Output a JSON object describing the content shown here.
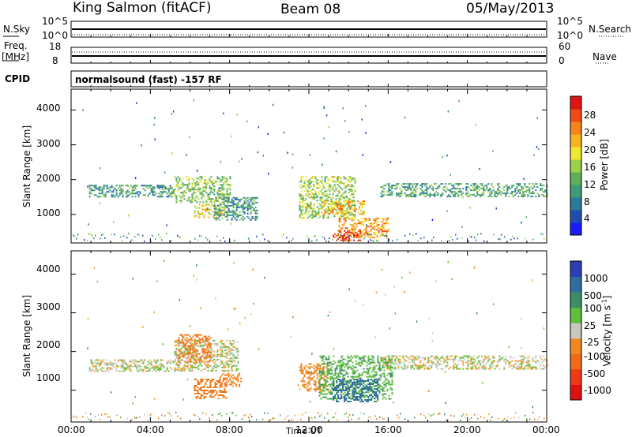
{
  "header": {
    "station": "King Salmon (fitACF)",
    "beam": "Beam 08",
    "date": "05/May/2013"
  },
  "top_panels": {
    "nsky_label": "N.Sky",
    "nsky_ticks": [
      "10^5",
      "10^0"
    ],
    "nsearch_label": "N.Search",
    "nsearch_ticks": [
      "10^5",
      "10^0"
    ],
    "freq_label_1": "Freq.",
    "freq_label_2": "[MHz]",
    "freq_ticks": [
      "18",
      "8"
    ],
    "nave_label": "Nave",
    "nave_ticks": [
      "60",
      "0"
    ],
    "cpid_label": "CPID",
    "cpid_text": "normalsound (fast) -157 RF"
  },
  "colorbars": {
    "power": {
      "label": "Power [dB]",
      "ticks": [
        "28",
        "24",
        "20",
        "16",
        "12",
        "8",
        "4"
      ],
      "colors": [
        "#1a1aff",
        "#1e4fb0",
        "#2b7a9a",
        "#3c9b78",
        "#5fae59",
        "#9bd24a",
        "#f0e82e",
        "#f6b41e",
        "#f5841a",
        "#f04a14",
        "#e01414"
      ]
    },
    "velocity": {
      "label": "Velocity [m s",
      "label_sup": "-1",
      "label_close": "]",
      "ticks": [
        "1000",
        "500",
        "100",
        "25",
        "-25",
        "-100",
        "-500",
        "-1000"
      ],
      "colors": [
        "#2c3fb4",
        "#2f6ea0",
        "#3a8f65",
        "#5fbf3a",
        "#c8c8c0",
        "#f08a20",
        "#f06a18",
        "#ee3a14",
        "#e01010"
      ]
    }
  },
  "axes": {
    "x_ticks": [
      "00:00",
      "04:00",
      "08:00",
      "12:00",
      "16:00",
      "20:00",
      "00:00"
    ],
    "x_label": "Time UT",
    "y_ticks": [
      "4000",
      "3000",
      "2000",
      "1000"
    ],
    "y_label": "Slant Range [km]"
  },
  "chart_data": [
    {
      "type": "heatmap",
      "title": "Power [dB]",
      "xlabel": "Time UT",
      "ylabel": "Slant Range [km]",
      "xlim": [
        0,
        24
      ],
      "ylim": [
        180,
        4600
      ],
      "yticks": [
        1000,
        2000,
        3000,
        4000
      ],
      "color_scale": [
        4,
        8,
        12,
        16,
        20,
        24,
        28
      ],
      "regions": [
        {
          "t": [
            0.9,
            5.2
          ],
          "r": [
            1500,
            1850
          ],
          "level": 0.3
        },
        {
          "t": [
            5.2,
            8.0
          ],
          "r": [
            1350,
            2100
          ],
          "level": 0.45
        },
        {
          "t": [
            6.2,
            7.8
          ],
          "r": [
            900,
            1300
          ],
          "level": 0.6
        },
        {
          "t": [
            7.2,
            9.4
          ],
          "r": [
            850,
            1500
          ],
          "level": 0.3
        },
        {
          "t": [
            11.5,
            14.3
          ],
          "r": [
            900,
            2100
          ],
          "level": 0.5
        },
        {
          "t": [
            12.6,
            14.8
          ],
          "r": [
            1000,
            1400
          ],
          "level": 0.7
        },
        {
          "t": [
            13.5,
            16.0
          ],
          "r": [
            350,
            900
          ],
          "level": 0.75
        },
        {
          "t": [
            13.2,
            14.6
          ],
          "r": [
            250,
            550
          ],
          "level": 0.95
        },
        {
          "t": [
            15.6,
            24.0
          ],
          "r": [
            1500,
            1900
          ],
          "level": 0.35
        }
      ]
    },
    {
      "type": "heatmap",
      "title": "Velocity [m s-1]",
      "xlabel": "Time UT",
      "ylabel": "Slant Range [km]",
      "xlim": [
        0,
        24
      ],
      "ylim": [
        180,
        4600
      ],
      "yticks": [
        1000,
        2000,
        3000,
        4000
      ],
      "color_scale": [
        1000,
        500,
        100,
        25,
        -25,
        -100,
        -500,
        -1000
      ],
      "regions": [
        {
          "t": [
            0.9,
            5.5
          ],
          "r": [
            1500,
            1800
          ],
          "vel": 0
        },
        {
          "t": [
            5.2,
            8.4
          ],
          "r": [
            1500,
            2300
          ],
          "vel": 0
        },
        {
          "t": [
            5.4,
            7.0
          ],
          "r": [
            1750,
            2450
          ],
          "vel": -150
        },
        {
          "t": [
            6.2,
            7.8
          ],
          "r": [
            800,
            1300
          ],
          "vel": -150
        },
        {
          "t": [
            7.5,
            8.6
          ],
          "r": [
            1100,
            1450
          ],
          "vel": -120
        },
        {
          "t": [
            11.5,
            13.0
          ],
          "r": [
            1000,
            1700
          ],
          "vel": -120
        },
        {
          "t": [
            12.5,
            16.2
          ],
          "r": [
            800,
            1900
          ],
          "vel": 80
        },
        {
          "t": [
            13.2,
            15.5
          ],
          "r": [
            700,
            1300
          ],
          "vel": 250
        },
        {
          "t": [
            15.6,
            24.0
          ],
          "r": [
            1550,
            1900
          ],
          "vel": 0
        }
      ]
    }
  ]
}
